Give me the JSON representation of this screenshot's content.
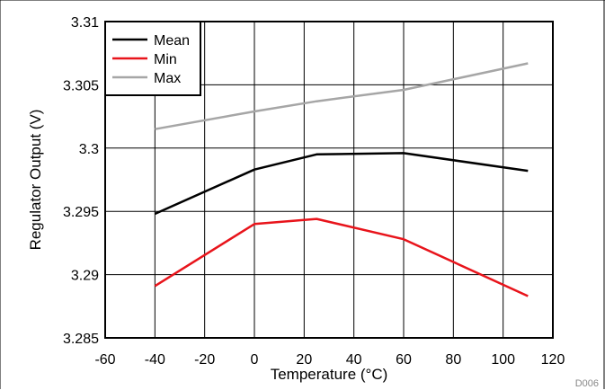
{
  "chart_data": {
    "type": "line",
    "title": "",
    "xlabel": "Temperature (°C)",
    "ylabel": "Regulator Output (V)",
    "xlim": [
      -60,
      120
    ],
    "ylim": [
      3.285,
      3.31
    ],
    "xticks": [
      -60,
      -40,
      -20,
      0,
      20,
      40,
      60,
      80,
      100,
      120
    ],
    "xtick_labels": [
      "-60",
      "-40",
      "-20",
      "0",
      "20",
      "40",
      "60",
      "80",
      "100",
      "120"
    ],
    "yticks": [
      3.285,
      3.29,
      3.295,
      3.3,
      3.305,
      3.31
    ],
    "ytick_labels": [
      "3.285",
      "3.29",
      "3.295",
      "3.3",
      "3.305",
      "3.31"
    ],
    "grid": true,
    "legend_position": "top-left",
    "series": [
      {
        "name": "Mean",
        "color": "#000000",
        "x": [
          -40,
          0,
          25,
          60,
          110
        ],
        "y": [
          3.2948,
          3.2983,
          3.2995,
          3.2996,
          3.2982
        ]
      },
      {
        "name": "Min",
        "color": "#e8141b",
        "x": [
          -40,
          0,
          25,
          60,
          110
        ],
        "y": [
          3.2891,
          3.294,
          3.2944,
          3.2928,
          3.2883
        ]
      },
      {
        "name": "Max",
        "color": "#a6a6a6",
        "x": [
          -40,
          0,
          25,
          60,
          110
        ],
        "y": [
          3.3015,
          3.3029,
          3.3037,
          3.3046,
          3.3067
        ]
      }
    ],
    "figure_code": "D006"
  }
}
